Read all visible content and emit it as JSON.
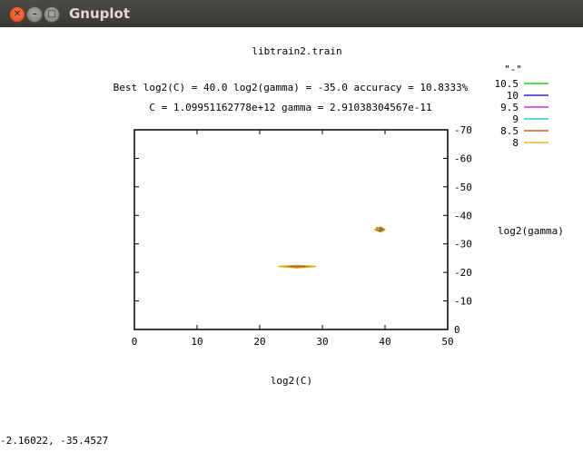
{
  "window": {
    "title": "Gnuplot",
    "close_glyph": "✕",
    "minimize_glyph": "–",
    "maximize_glyph": "□"
  },
  "plot": {
    "title": "libtrain2.train",
    "best_line": "Best log2(C) = 40.0  log2(gamma) = -35.0  accuracy = 10.8333%",
    "params_line": "C = 1.09951162778e+12  gamma = 2.91038304567e-11",
    "xlabel": "log2(C)",
    "ylabel": "log2(gamma)"
  },
  "chart_data": {
    "type": "line",
    "title": "libtrain2.train",
    "xlabel": "log2(C)",
    "ylabel": "log2(gamma)",
    "xlim": [
      0,
      50
    ],
    "ylim": [
      0,
      -70
    ],
    "x_ticks": [
      "0",
      "10",
      "20",
      "30",
      "40",
      "50"
    ],
    "y_ticks": [
      "0",
      "-10",
      "-20",
      "-30",
      "-40",
      "-50",
      "-60",
      "-70"
    ],
    "legend_position": "top-right, outside plot",
    "legend_header": "\"-\"",
    "series": [
      {
        "name": "10.5",
        "color": "#00c000",
        "contours": [
          [
            [
              24.0,
              -21.9
            ],
            [
              26.0,
              -22.2
            ],
            [
              28.0,
              -21.9
            ]
          ],
          [
            [
              38.6,
              -34.6
            ],
            [
              39.6,
              -35.2
            ],
            [
              38.6,
              -35.8
            ]
          ]
        ]
      },
      {
        "name": "10",
        "color": "#0000b0",
        "contours": [
          [
            [
              24.5,
              -21.95
            ],
            [
              26.0,
              -22.1
            ],
            [
              27.5,
              -21.95
            ]
          ],
          [
            [
              38.9,
              -34.5
            ],
            [
              39.6,
              -35.0
            ],
            [
              38.9,
              -35.6
            ]
          ]
        ]
      },
      {
        "name": "9.5",
        "color": "#c000c0",
        "contours": [
          [
            [
              25.0,
              -22.0
            ],
            [
              26.0,
              -22.15
            ],
            [
              27.0,
              -22.0
            ]
          ],
          [
            [
              39.1,
              -34.6
            ],
            [
              39.5,
              -35.0
            ],
            [
              39.1,
              -35.4
            ]
          ]
        ]
      },
      {
        "name": "9",
        "color": "#00c0c0",
        "contours": [
          [
            [
              25.3,
              -22.05
            ],
            [
              26.0,
              -22.2
            ],
            [
              26.7,
              -22.05
            ]
          ],
          [
            [
              39.2,
              -34.7
            ],
            [
              39.5,
              -35.0
            ],
            [
              39.2,
              -35.3
            ]
          ]
        ]
      },
      {
        "name": "8.5",
        "color": "#b04000",
        "contours": [
          [
            [
              23.5,
              -22.1
            ],
            [
              26.0,
              -21.7
            ],
            [
              28.5,
              -22.1
            ],
            [
              26.0,
              -22.4
            ],
            [
              23.5,
              -22.1
            ]
          ],
          [
            [
              38.5,
              -35.0
            ],
            [
              39.3,
              -34.3
            ],
            [
              39.8,
              -35.0
            ],
            [
              39.3,
              -35.8
            ],
            [
              38.5,
              -35.0
            ]
          ]
        ]
      },
      {
        "name": "8",
        "color": "#f0a000",
        "contours": [
          [
            [
              23.0,
              -22.1
            ],
            [
              26.0,
              -21.6
            ],
            [
              29.0,
              -22.1
            ],
            [
              26.0,
              -22.5
            ],
            [
              23.0,
              -22.1
            ]
          ],
          [
            [
              38.3,
              -35.0
            ],
            [
              39.3,
              -34.1
            ],
            [
              40.0,
              -35.0
            ],
            [
              39.3,
              -36.0
            ],
            [
              38.3,
              -35.0
            ]
          ]
        ]
      }
    ]
  },
  "status": {
    "coords": "-2.16022, -35.4527"
  }
}
